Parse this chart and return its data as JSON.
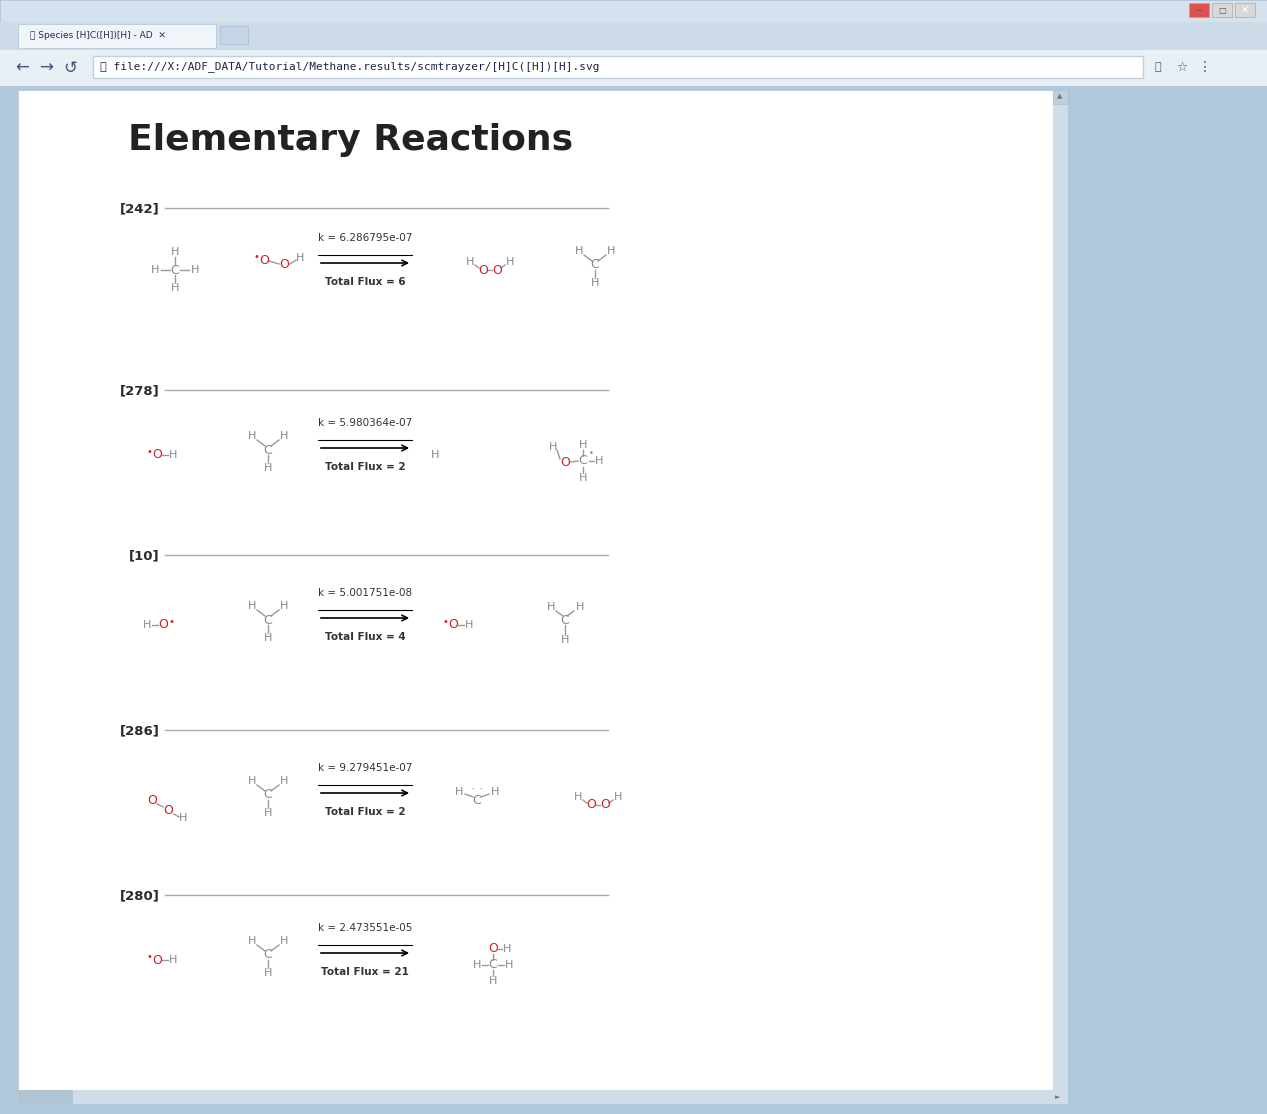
{
  "title": "Elementary Reactions",
  "tab_text": "Species [H]C([H])[H] - AD",
  "url": "file:///X:/ADF_DATA/Tutorial/Methane.results/scmtrayzer/[H]C([H])[H].svg",
  "browser_outer": "#b0c8dc",
  "browser_chrome_top": "#d6e4f0",
  "browser_tab_bar": "#cddbe8",
  "browser_addr_bar": "#e8f0f6",
  "content_bg": "#ffffff",
  "scrollbar_bg": "#d0dde8",
  "reactions": [
    {
      "id": "[242]",
      "k": "k = 6.286795e-07",
      "flux": "Total Flux = 6"
    },
    {
      "id": "[278]",
      "k": "k = 5.980364e-07",
      "flux": "Total Flux = 2"
    },
    {
      "id": "[10]",
      "k": "k = 5.001751e-08",
      "flux": "Total Flux = 4"
    },
    {
      "id": "[286]",
      "k": "k = 9.279451e-07",
      "flux": "Total Flux = 2"
    },
    {
      "id": "[280]",
      "k": "k = 2.473551e-05",
      "flux": "Total Flux = 21"
    }
  ],
  "atom_gray": "#888888",
  "atom_red": "#cc2222",
  "bond_gray": "#999999",
  "sep_gray": "#aaaaaa",
  "text_dark": "#333333",
  "title_color": "#222222"
}
